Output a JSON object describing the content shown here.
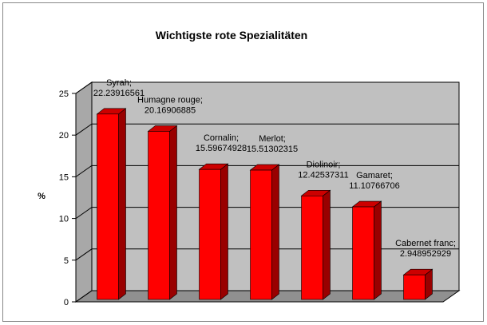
{
  "chart_data": {
    "type": "bar3d",
    "title": "Wichtigste rote Spezialitäten",
    "ylabel": "%",
    "values": [
      22.23916561,
      20.16906885,
      15.59674928,
      15.51302315,
      12.42537311,
      11.10766706,
      2.948952929
    ],
    "value_labels": [
      "Syrah;\n22.23916561",
      "Humagne rouge;\n20.16906885",
      "Cornalin;\n15.59674928",
      "Merlot;\n15.51302315",
      "Diolinoir;\n12.42537311",
      "Gamaret;\n11.10766706",
      "Cabernet franc;\n2.948952929"
    ],
    "color": "#ff0000",
    "ylim": [
      0,
      25
    ],
    "yticks": [
      0,
      5,
      10,
      15,
      20,
      25
    ],
    "grid": true
  }
}
